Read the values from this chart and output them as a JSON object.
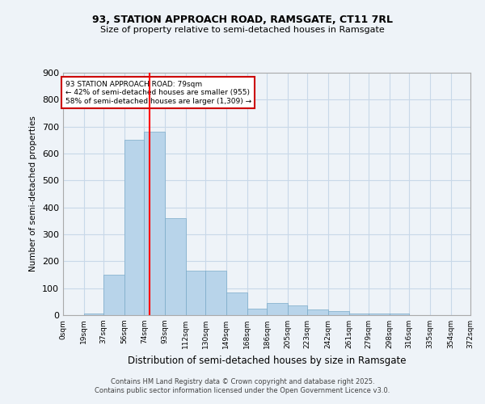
{
  "title1": "93, STATION APPROACH ROAD, RAMSGATE, CT11 7RL",
  "title2": "Size of property relative to semi-detached houses in Ramsgate",
  "xlabel": "Distribution of semi-detached houses by size in Ramsgate",
  "ylabel": "Number of semi-detached properties",
  "bin_edges": [
    0,
    19,
    37,
    56,
    74,
    93,
    112,
    130,
    149,
    168,
    186,
    205,
    223,
    242,
    261,
    279,
    298,
    316,
    335,
    354,
    372
  ],
  "bar_heights": [
    0,
    5,
    150,
    650,
    680,
    360,
    165,
    165,
    85,
    25,
    45,
    35,
    20,
    15,
    5,
    5,
    5,
    0,
    0,
    0
  ],
  "bar_color": "#b8d4ea",
  "bar_edge_color": "#7aaac8",
  "grid_color": "#c8d8e8",
  "background_color": "#eef3f8",
  "red_line_x": 79,
  "annotation_title": "93 STATION APPROACH ROAD: 79sqm",
  "annotation_line1": "← 42% of semi-detached houses are smaller (955)",
  "annotation_line2": "58% of semi-detached houses are larger (1,309) →",
  "annotation_box_color": "#ffffff",
  "annotation_box_edge_color": "#cc0000",
  "footer_line1": "Contains HM Land Registry data © Crown copyright and database right 2025.",
  "footer_line2": "Contains public sector information licensed under the Open Government Licence v3.0.",
  "ylim": [
    0,
    900
  ],
  "yticks": [
    0,
    100,
    200,
    300,
    400,
    500,
    600,
    700,
    800,
    900
  ],
  "tick_labels": [
    "0sqm",
    "19sqm",
    "37sqm",
    "56sqm",
    "74sqm",
    "93sqm",
    "112sqm",
    "130sqm",
    "149sqm",
    "168sqm",
    "186sqm",
    "205sqm",
    "223sqm",
    "242sqm",
    "261sqm",
    "279sqm",
    "298sqm",
    "316sqm",
    "335sqm",
    "354sqm",
    "372sqm"
  ]
}
